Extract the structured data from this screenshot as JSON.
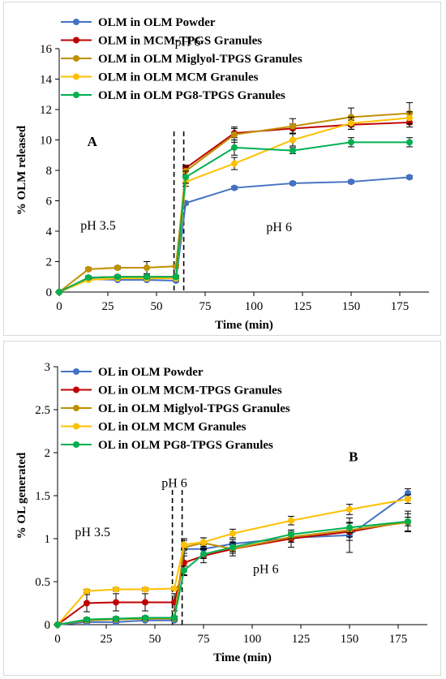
{
  "chart_data": [
    {
      "type": "line",
      "panel_label": "A",
      "xlabel": "Time (min)",
      "ylabel": "% OLM released",
      "xlim": [
        0,
        190
      ],
      "ylim": [
        0,
        16
      ],
      "xticks": [
        0,
        25,
        50,
        75,
        100,
        125,
        150,
        175
      ],
      "yticks": [
        0,
        2,
        4,
        6,
        8,
        10,
        12,
        14,
        16
      ],
      "x": [
        0,
        15,
        30,
        45,
        60,
        65,
        90,
        120,
        150,
        180
      ],
      "legend_position": "top-left",
      "series": [
        {
          "name": "OLM in OLM Powder",
          "color": "#4472c4",
          "values": [
            0,
            0.85,
            0.8,
            0.8,
            0.75,
            5.85,
            6.85,
            7.15,
            7.25,
            7.55
          ],
          "errors": [
            0,
            0.05,
            0.05,
            0.05,
            0.05,
            0.1,
            0.1,
            0.1,
            0.1,
            0.1
          ]
        },
        {
          "name": "OLM in MCM-TPGS Granules",
          "color": "#c00000",
          "values": [
            0,
            0.95,
            1.0,
            1.0,
            1.0,
            8.15,
            10.45,
            10.75,
            11.0,
            11.15
          ],
          "errors": [
            0,
            0.1,
            0.1,
            0.1,
            0.1,
            0.2,
            0.3,
            0.3,
            0.3,
            0.3
          ]
        },
        {
          "name": "OLM in OLM Miglyol-TPGS Granules",
          "color": "#bf9000",
          "values": [
            0,
            1.5,
            1.6,
            1.6,
            1.7,
            7.95,
            10.35,
            10.9,
            11.5,
            11.75
          ],
          "errors": [
            0,
            0.1,
            0.1,
            0.4,
            0.1,
            0.3,
            0.5,
            0.5,
            0.6,
            0.7
          ]
        },
        {
          "name": "OLM in OLM MCM Granules",
          "color": "#ffc000",
          "values": [
            0,
            0.8,
            0.9,
            0.9,
            0.9,
            7.25,
            8.45,
            10.0,
            11.1,
            11.45
          ],
          "errors": [
            0,
            0.05,
            0.05,
            0.05,
            0.05,
            0.3,
            0.4,
            0.4,
            0.4,
            0.4
          ]
        },
        {
          "name": "OLM in OLM PG8-TPGS Granules",
          "color": "#00b050",
          "values": [
            0,
            0.95,
            1.0,
            1.0,
            1.0,
            7.55,
            9.5,
            9.3,
            9.85,
            9.85
          ],
          "errors": [
            0,
            0.1,
            0.1,
            0.1,
            0.1,
            0.4,
            0.5,
            0.2,
            0.3,
            0.3
          ]
        }
      ],
      "annotations": [
        {
          "text": "A",
          "x": 17,
          "y": 9.6
        },
        {
          "text": "pH 6",
          "x": 66,
          "y": 16.2
        },
        {
          "text": "pH 3.5",
          "x": 20,
          "y": 4.1
        },
        {
          "text": "pH 6",
          "x": 113,
          "y": 4.0
        }
      ],
      "dashed_lines_x": [
        59,
        64
      ]
    },
    {
      "type": "line",
      "panel_label": "B",
      "xlabel": "Time (min)",
      "ylabel": "% OL generated",
      "xlim": [
        0,
        190
      ],
      "ylim": [
        0,
        3
      ],
      "xticks": [
        0,
        25,
        50,
        75,
        100,
        125,
        150,
        175
      ],
      "yticks": [
        "0",
        "0.5",
        "1",
        "1.5",
        "2",
        "2.5",
        "3"
      ],
      "x": [
        0,
        15,
        30,
        45,
        60,
        65,
        75,
        90,
        120,
        150,
        180
      ],
      "legend_position": "top-left",
      "series": [
        {
          "name": "OL in OLM Powder",
          "color": "#4472c4",
          "values": [
            0,
            0.03,
            0.03,
            0.05,
            0.05,
            0.88,
            0.88,
            0.94,
            1.01,
            1.04,
            1.53
          ],
          "errors": [
            0,
            0.01,
            0.01,
            0.01,
            0.01,
            0.05,
            0.05,
            0.05,
            0.05,
            0.2,
            0.05
          ]
        },
        {
          "name": "OL in OLM MCM-TPGS Granules",
          "color": "#c00000",
          "values": [
            0,
            0.25,
            0.26,
            0.26,
            0.26,
            0.72,
            0.8,
            0.88,
            1.0,
            1.08,
            1.2
          ],
          "errors": [
            0,
            0.1,
            0.1,
            0.1,
            0.1,
            0.15,
            0.08,
            0.08,
            0.1,
            0.1,
            0.12
          ]
        },
        {
          "name": "OL in OLM Miglyol-TPGS Granules",
          "color": "#bf9000",
          "values": [
            0,
            0.05,
            0.06,
            0.07,
            0.07,
            0.9,
            0.95,
            0.88,
            1.02,
            1.1,
            1.19
          ],
          "errors": [
            0,
            0.02,
            0.02,
            0.02,
            0.02,
            0.1,
            0.06,
            0.05,
            0.06,
            0.08,
            0.1
          ]
        },
        {
          "name": "OL in OLM MCM Granules",
          "color": "#ffc000",
          "values": [
            0,
            0.39,
            0.41,
            0.41,
            0.42,
            0.93,
            0.96,
            1.06,
            1.21,
            1.34,
            1.46
          ],
          "errors": [
            0,
            0.02,
            0.02,
            0.02,
            0.02,
            0.05,
            0.05,
            0.05,
            0.05,
            0.06,
            0.05
          ]
        },
        {
          "name": "OL in OLM PG8-TPGS Granules",
          "color": "#00b050",
          "values": [
            0,
            0.06,
            0.07,
            0.08,
            0.08,
            0.63,
            0.82,
            0.9,
            1.05,
            1.13,
            1.2
          ],
          "errors": [
            0,
            0.02,
            0.02,
            0.02,
            0.02,
            0.05,
            0.05,
            0.05,
            0.05,
            0.06,
            0.05
          ]
        }
      ],
      "annotations": [
        {
          "text": "B",
          "x": 152,
          "y": 1.9
        },
        {
          "text": "pH 6",
          "x": 60,
          "y": 1.6
        },
        {
          "text": "pH 3.5",
          "x": 18,
          "y": 1.03
        },
        {
          "text": "pH 6",
          "x": 107,
          "y": 0.6
        }
      ],
      "dashed_lines_x": [
        59,
        64
      ]
    }
  ]
}
